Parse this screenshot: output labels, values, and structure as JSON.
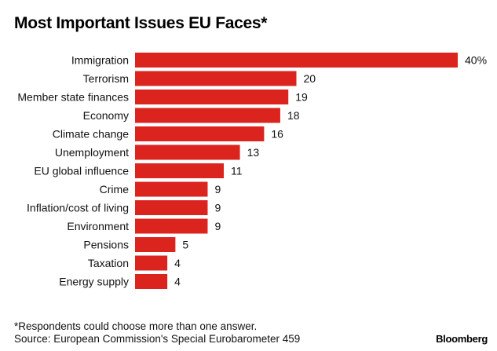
{
  "chart_data": {
    "type": "bar",
    "orientation": "horizontal",
    "title": "Most Important Issues EU Faces*",
    "xlabel": "",
    "ylabel": "",
    "unit": "%",
    "xlim": [
      0,
      40
    ],
    "grid": false,
    "categories": [
      "Immigration",
      "Terrorism",
      "Member state finances",
      "Economy",
      "Climate change",
      "Unemployment",
      "EU global influence",
      "Crime",
      "Inflation/cost of living",
      "Environment",
      "Pensions",
      "Taxation",
      "Energy supply"
    ],
    "values": [
      40,
      20,
      19,
      18,
      16,
      13,
      11,
      9,
      9,
      9,
      5,
      4,
      4
    ],
    "value_labels": [
      "40%",
      "20",
      "19",
      "18",
      "16",
      "13",
      "11",
      "9",
      "9",
      "9",
      "5",
      "4",
      "4"
    ],
    "bar_color": "#dc241f"
  },
  "footnote": {
    "note": "*Respondents could choose more than one answer.",
    "source": "Source: European Commission's Special Eurobarometer 459"
  },
  "brand": "Bloomberg"
}
